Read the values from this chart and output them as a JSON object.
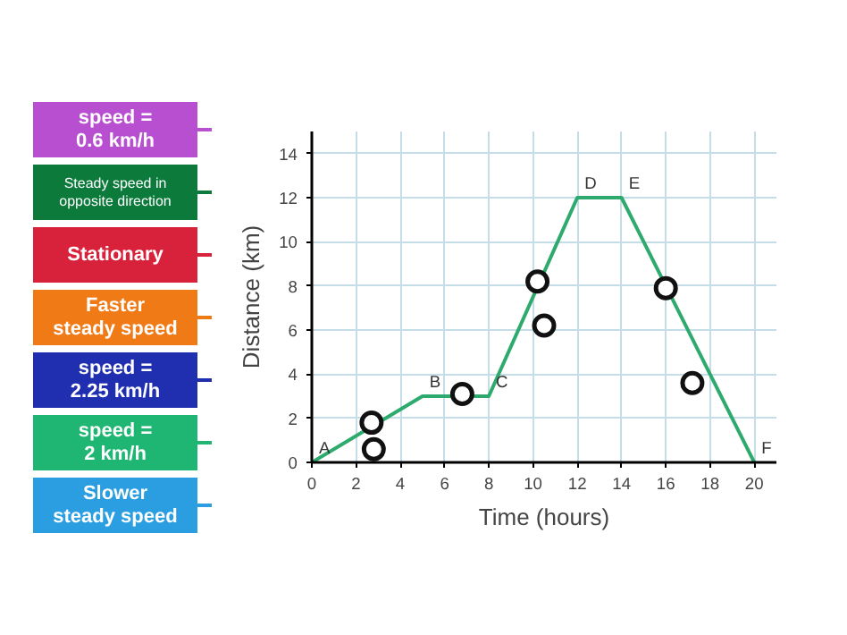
{
  "chart_data": {
    "type": "line",
    "xlabel": "Time (hours)",
    "ylabel": "Distance (km)",
    "x": [
      0,
      5,
      8,
      12,
      14,
      20
    ],
    "series": [
      {
        "type": "line",
        "color": "#2eaa6e",
        "values": [
          0,
          3,
          3,
          12,
          12,
          0
        ]
      },
      {
        "type": "scatter",
        "color": "#111111",
        "marker": "circle",
        "x": [
          2.7,
          2.8,
          6.8,
          10.2,
          10.5,
          16,
          17.2
        ],
        "values": [
          1.8,
          0.6,
          3.1,
          8.2,
          6.2,
          7.9,
          3.6
        ]
      }
    ],
    "xlim": [
      0,
      21
    ],
    "ylim": [
      0,
      15
    ],
    "xticks": [
      0,
      2,
      4,
      6,
      8,
      10,
      12,
      14,
      16,
      18,
      20
    ],
    "yticks": [
      0,
      2,
      4,
      6,
      8,
      10,
      12,
      14
    ],
    "grid": true,
    "annotations": [
      {
        "text": "A",
        "x": 0,
        "y": 0
      },
      {
        "text": "B",
        "x": 5,
        "y": 3
      },
      {
        "text": "C",
        "x": 8,
        "y": 3
      },
      {
        "text": "D",
        "x": 12,
        "y": 12
      },
      {
        "text": "E",
        "x": 14,
        "y": 12
      },
      {
        "text": "F",
        "x": 20,
        "y": 0
      },
      "speed = 0.6 km/h",
      "Steady speed in opposite direction",
      "Stationary",
      "Faster steady speed",
      "speed = 2.25 km/h",
      "speed = 2 km/h",
      "Slower steady speed"
    ]
  }
}
